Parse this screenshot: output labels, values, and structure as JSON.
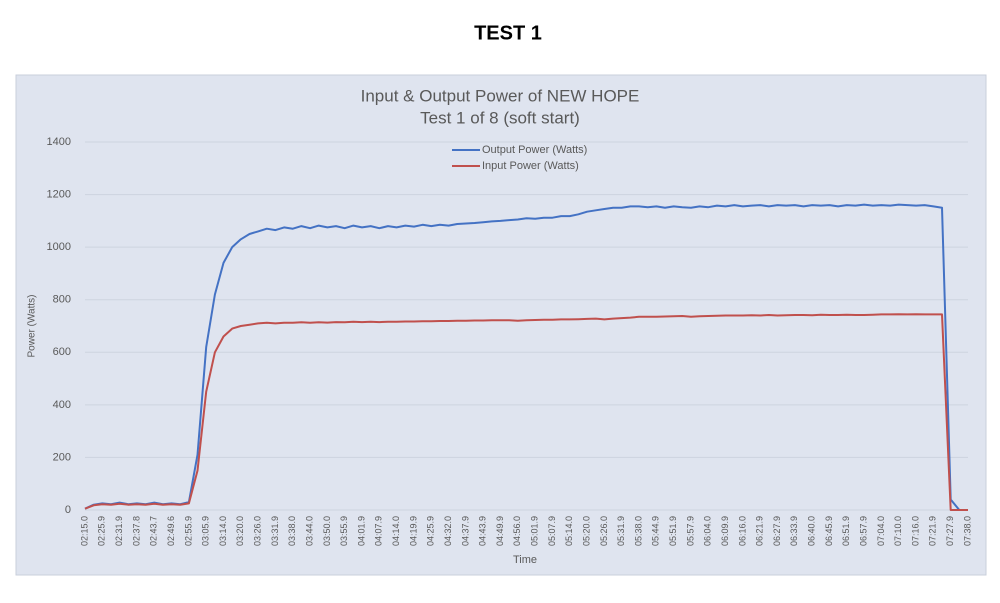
{
  "heading": "TEST 1",
  "chart_data": {
    "type": "line",
    "title": "Input & Output Power of NEW HOPE",
    "subtitle": "Test 1 of 8 (soft start)",
    "x_label": "Time",
    "y_label": "Power (Watts)",
    "categories": [
      "02:15.0",
      null,
      "02:25.9",
      null,
      "02:31.9",
      null,
      "02:37.8",
      null,
      "02:43.7",
      null,
      "02:49.6",
      null,
      "02:55.9",
      null,
      "03:05.9",
      null,
      "03:14.0",
      null,
      "03:20.0",
      null,
      "03:26.0",
      null,
      "03:31.9",
      null,
      "03:38.0",
      null,
      "03:44.0",
      null,
      "03:50.0",
      null,
      "03:55.9",
      null,
      "04:01.9",
      null,
      "04:07.9",
      null,
      "04:14.0",
      null,
      "04:19.9",
      null,
      "04:25.9",
      null,
      "04:32.0",
      null,
      "04:37.9",
      null,
      "04:43.9",
      null,
      "04:49.9",
      null,
      "04:56.0",
      null,
      "05:01.9",
      null,
      "05:07.9",
      null,
      "05:14.0",
      null,
      "05:20.0",
      null,
      "05:26.0",
      null,
      "05:31.9",
      null,
      "05:38.0",
      null,
      "05:44.9",
      null,
      "05:51.9",
      null,
      "05:57.9",
      null,
      "06:04.0",
      null,
      "06:09.9",
      null,
      "06:16.0",
      null,
      "06:21.9",
      null,
      "06:27.9",
      null,
      "06:33.9",
      null,
      "06:40.0",
      null,
      "06:45.9",
      null,
      "06:51.9",
      null,
      "06:57.9",
      null,
      "07:04.0",
      null,
      "07:10.0",
      null,
      "07:16.0",
      null,
      "07:21.9",
      null,
      "07:27.9",
      null,
      "07:38.0"
    ],
    "series": [
      {
        "name": "Output Power (Watts)",
        "color": "#4472c4",
        "values": [
          5,
          20,
          25,
          22,
          28,
          22,
          25,
          22,
          28,
          22,
          25,
          22,
          30,
          210,
          620,
          820,
          940,
          1000,
          1030,
          1050,
          1060,
          1070,
          1065,
          1075,
          1070,
          1080,
          1072,
          1082,
          1075,
          1080,
          1072,
          1082,
          1075,
          1080,
          1072,
          1080,
          1075,
          1082,
          1078,
          1085,
          1080,
          1085,
          1082,
          1088,
          1090,
          1092,
          1095,
          1098,
          1100,
          1103,
          1105,
          1110,
          1108,
          1112,
          1112,
          1118,
          1118,
          1125,
          1135,
          1140,
          1145,
          1150,
          1150,
          1155,
          1155,
          1152,
          1155,
          1150,
          1155,
          1152,
          1150,
          1155,
          1152,
          1158,
          1155,
          1160,
          1155,
          1158,
          1160,
          1155,
          1160,
          1158,
          1160,
          1155,
          1160,
          1158,
          1160,
          1155,
          1160,
          1158,
          1162,
          1158,
          1160,
          1158,
          1162,
          1160,
          1158,
          1160,
          1155,
          1150,
          40,
          0,
          0
        ]
      },
      {
        "name": "Input Power (Watts)",
        "color": "#c0504d",
        "values": [
          5,
          18,
          22,
          20,
          24,
          20,
          22,
          20,
          24,
          20,
          22,
          20,
          25,
          150,
          450,
          600,
          660,
          690,
          700,
          705,
          710,
          712,
          710,
          712,
          712,
          714,
          712,
          714,
          713,
          715,
          714,
          716,
          715,
          716,
          715,
          716,
          716,
          717,
          717,
          718,
          718,
          719,
          719,
          720,
          720,
          721,
          721,
          722,
          722,
          722,
          720,
          722,
          723,
          724,
          724,
          725,
          725,
          726,
          727,
          728,
          725,
          728,
          730,
          732,
          735,
          735,
          735,
          736,
          737,
          738,
          735,
          737,
          738,
          739,
          740,
          740,
          740,
          741,
          740,
          742,
          740,
          741,
          742,
          742,
          741,
          743,
          742,
          742,
          743,
          742,
          742,
          743,
          744,
          744,
          745,
          744,
          745,
          744,
          744,
          744,
          0,
          0,
          0
        ]
      }
    ],
    "ylim": [
      0,
      1400
    ],
    "yticks": [
      0,
      200,
      400,
      600,
      800,
      1000,
      1200,
      1400
    ],
    "grid": true,
    "legend": "top-center"
  }
}
